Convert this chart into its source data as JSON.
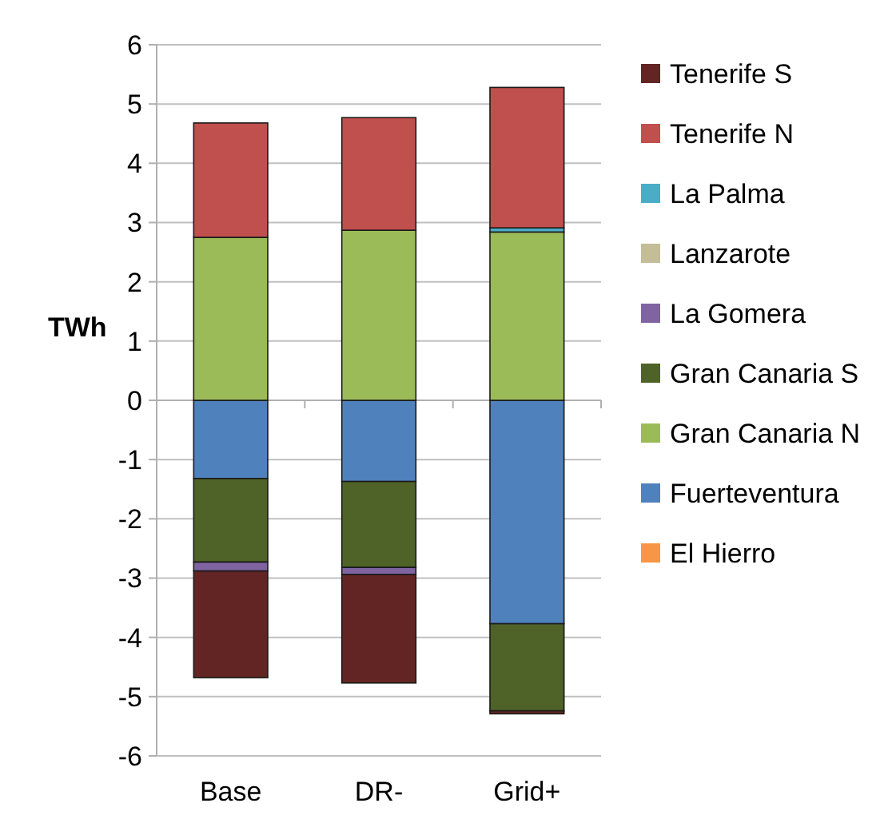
{
  "chart_data": {
    "type": "bar",
    "stacked": true,
    "ylabel": "TWh",
    "categories": [
      "Base",
      "DR-",
      "Grid+"
    ],
    "ylim": [
      -6,
      6
    ],
    "yticks": [
      -6,
      -5,
      -4,
      -3,
      -2,
      -1,
      0,
      1,
      2,
      3,
      4,
      5,
      6
    ],
    "grid": "y",
    "legend": "right",
    "series": [
      {
        "name": "El Hierro",
        "color": "#f79646",
        "values": [
          0,
          0,
          0
        ]
      },
      {
        "name": "Fuerteventura",
        "color": "#4f81bd",
        "values": [
          -1.32,
          -1.37,
          -3.77
        ]
      },
      {
        "name": "Gran Canaria N",
        "color": "#9bbb59",
        "values": [
          2.75,
          2.87,
          2.84
        ]
      },
      {
        "name": "Gran Canaria S",
        "color": "#4f6228",
        "values": [
          -1.41,
          -1.45,
          -1.47
        ]
      },
      {
        "name": "La Gomera",
        "color": "#8064a2",
        "values": [
          -0.15,
          -0.12,
          0
        ]
      },
      {
        "name": "Lanzarote",
        "color": "#c4bd97",
        "values": [
          0,
          0,
          0
        ]
      },
      {
        "name": "La Palma",
        "color": "#4bacc6",
        "values": [
          0,
          0,
          0.07
        ]
      },
      {
        "name": "Tenerife N",
        "color": "#c0504d",
        "values": [
          1.93,
          1.9,
          2.37
        ]
      },
      {
        "name": "Tenerife S",
        "color": "#632523",
        "values": [
          -1.8,
          -1.83,
          -0.05
        ]
      }
    ]
  }
}
